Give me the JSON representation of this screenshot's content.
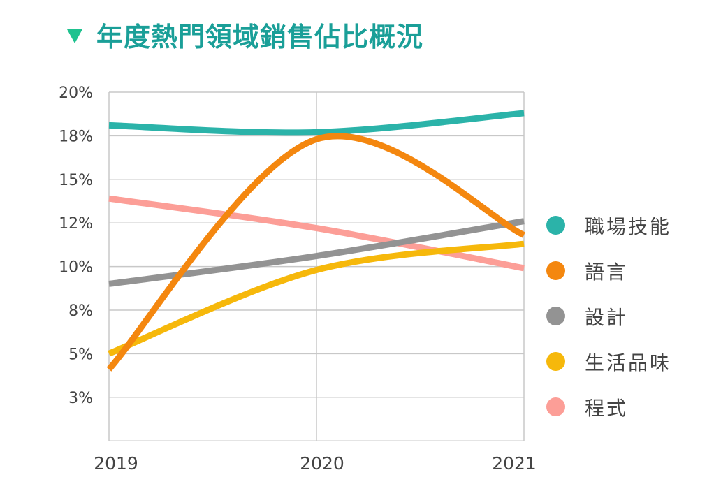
{
  "title": "年度熱門領域銷售佔比概況",
  "chart_data": {
    "type": "line",
    "title": "年度熱門領域銷售佔比概況",
    "x": [
      "2019",
      "2020",
      "2021"
    ],
    "y_ticks": [
      "20%",
      "18%",
      "15%",
      "12%",
      "10%",
      "8%",
      "5%",
      "3%"
    ],
    "ylim": [
      0,
      20
    ],
    "grid": true,
    "legend_position": "right",
    "series": [
      {
        "name": "職場技能",
        "color": "#2bb3a9",
        "values": [
          18.1,
          17.7,
          18.8
        ]
      },
      {
        "name": "語言",
        "color": "#f4870f",
        "values": [
          4.1,
          17.3,
          11.8
        ]
      },
      {
        "name": "設計",
        "color": "#939393",
        "values": [
          9.0,
          10.6,
          12.6
        ]
      },
      {
        "name": "生活品味",
        "color": "#f6b80b",
        "values": [
          5.0,
          9.8,
          11.3
        ]
      },
      {
        "name": "程式",
        "color": "#fc9e97",
        "values": [
          13.9,
          12.2,
          9.9
        ]
      }
    ]
  }
}
